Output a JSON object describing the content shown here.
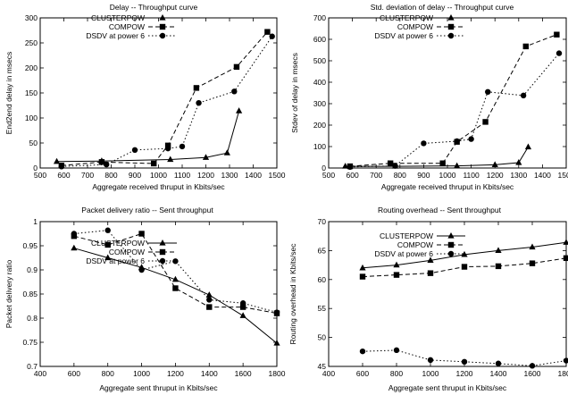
{
  "chart_data": [
    {
      "type": "line",
      "title": "Delay -- Throughput curve",
      "xlabel": "Aggregate received thruput in Kbits/sec",
      "ylabel": "End2end delay in msecs",
      "xlim": [
        500,
        1500
      ],
      "ylim": [
        0,
        300
      ],
      "xticks": [
        500,
        600,
        700,
        800,
        900,
        1000,
        1100,
        1200,
        1300,
        1400,
        1500
      ],
      "yticks": [
        0,
        50,
        100,
        150,
        200,
        250,
        300
      ],
      "legend_position": "top-left",
      "series": [
        {
          "name": "CLUSTERPOW",
          "marker": "triangle",
          "dash": "solid",
          "points": [
            [
              570,
              13
            ],
            [
              760,
              14
            ],
            [
              1050,
              17
            ],
            [
              1200,
              21
            ],
            [
              1290,
              30
            ],
            [
              1340,
              114
            ]
          ]
        },
        {
          "name": "COMPOW",
          "marker": "square",
          "dash": "dashed",
          "points": [
            [
              590,
              5
            ],
            [
              760,
              12
            ],
            [
              980,
              9
            ],
            [
              1040,
              45
            ],
            [
              1160,
              160
            ],
            [
              1330,
              202
            ],
            [
              1460,
              272
            ]
          ]
        },
        {
          "name": "DSDV at power 6",
          "marker": "circle",
          "dash": "dotted",
          "points": [
            [
              590,
              3
            ],
            [
              780,
              7
            ],
            [
              900,
              36
            ],
            [
              1040,
              39
            ],
            [
              1100,
              43
            ],
            [
              1170,
              130
            ],
            [
              1320,
              153
            ],
            [
              1480,
              263
            ]
          ]
        }
      ]
    },
    {
      "type": "line",
      "title": "Std. deviation of delay -- Throughput curve",
      "xlabel": "Aggregate received thruput in Kbits/sec",
      "ylabel": "Stdev of delay in msecs",
      "xlim": [
        500,
        1500
      ],
      "ylim": [
        0,
        700
      ],
      "xticks": [
        500,
        600,
        700,
        800,
        900,
        1000,
        1100,
        1200,
        1300,
        1400,
        1500
      ],
      "yticks": [
        0,
        100,
        200,
        300,
        400,
        500,
        600,
        700
      ],
      "legend_position": "top-left",
      "series": [
        {
          "name": "CLUSTERPOW",
          "marker": "triangle",
          "dash": "solid",
          "points": [
            [
              570,
              8
            ],
            [
              780,
              8
            ],
            [
              1040,
              10
            ],
            [
              1200,
              15
            ],
            [
              1300,
              25
            ],
            [
              1340,
              98
            ]
          ]
        },
        {
          "name": "COMPOW",
          "marker": "square",
          "dash": "dashed",
          "points": [
            [
              590,
              8
            ],
            [
              760,
              22
            ],
            [
              980,
              22
            ],
            [
              1040,
              122
            ],
            [
              1160,
              215
            ],
            [
              1330,
              567
            ],
            [
              1460,
              622
            ]
          ]
        },
        {
          "name": "DSDV at power 6",
          "marker": "circle",
          "dash": "dotted",
          "points": [
            [
              590,
              5
            ],
            [
              780,
              10
            ],
            [
              900,
              115
            ],
            [
              1040,
              125
            ],
            [
              1100,
              135
            ],
            [
              1170,
              355
            ],
            [
              1320,
              338
            ],
            [
              1470,
              535
            ]
          ]
        }
      ]
    },
    {
      "type": "line",
      "title": "Packet delivery ratio -- Sent throughput",
      "xlabel": "Aggregate sent thruput in Kbits/sec",
      "ylabel": "Packet delivery ratio",
      "xlim": [
        400,
        1800
      ],
      "ylim": [
        0.7,
        1.0
      ],
      "xticks": [
        400,
        600,
        800,
        1000,
        1200,
        1400,
        1600,
        1800
      ],
      "yticks": [
        0.7,
        0.75,
        0.8,
        0.85,
        0.9,
        0.95,
        1
      ],
      "legend_position": "top-right",
      "series": [
        {
          "name": "CLUSTERPOW",
          "marker": "triangle",
          "dash": "solid",
          "points": [
            [
              600,
              0.945
            ],
            [
              800,
              0.925
            ],
            [
              1000,
              0.905
            ],
            [
              1200,
              0.88
            ],
            [
              1400,
              0.848
            ],
            [
              1600,
              0.805
            ],
            [
              1800,
              0.748
            ]
          ]
        },
        {
          "name": "COMPOW",
          "marker": "square",
          "dash": "dashed",
          "points": [
            [
              600,
              0.97
            ],
            [
              800,
              0.952
            ],
            [
              1000,
              0.975
            ],
            [
              1200,
              0.862
            ],
            [
              1400,
              0.823
            ],
            [
              1600,
              0.823
            ],
            [
              1800,
              0.81
            ]
          ]
        },
        {
          "name": "DSDV at power 6",
          "marker": "circle",
          "dash": "dotted",
          "points": [
            [
              600,
              0.975
            ],
            [
              800,
              0.982
            ],
            [
              1000,
              0.9
            ],
            [
              1200,
              0.918
            ],
            [
              1400,
              0.838
            ],
            [
              1600,
              0.831
            ],
            [
              1800,
              0.812
            ]
          ]
        }
      ]
    },
    {
      "type": "line",
      "title": "Routing overhead -- Sent throughput",
      "xlabel": "Aggregate sent thruput in Kbits/sec",
      "ylabel": "Routing overhead in Kbits/sec",
      "xlim": [
        400,
        1800
      ],
      "ylim": [
        45,
        70
      ],
      "xticks": [
        400,
        600,
        800,
        1000,
        1200,
        1400,
        1600,
        1800
      ],
      "yticks": [
        45,
        50,
        55,
        60,
        65,
        70
      ],
      "legend_position": "top-right",
      "series": [
        {
          "name": "CLUSTERPOW",
          "marker": "triangle",
          "dash": "solid",
          "points": [
            [
              600,
              62
            ],
            [
              800,
              62.5
            ],
            [
              1000,
              63.3
            ],
            [
              1200,
              64.3
            ],
            [
              1400,
              65
            ],
            [
              1600,
              65.6
            ],
            [
              1800,
              66.4
            ]
          ]
        },
        {
          "name": "COMPOW",
          "marker": "square",
          "dash": "dashed",
          "points": [
            [
              600,
              60.5
            ],
            [
              800,
              60.8
            ],
            [
              1000,
              61.1
            ],
            [
              1200,
              62.2
            ],
            [
              1400,
              62.3
            ],
            [
              1600,
              62.8
            ],
            [
              1800,
              63.7
            ]
          ]
        },
        {
          "name": "DSDV at power 6",
          "marker": "circle",
          "dash": "dotted",
          "points": [
            [
              600,
              47.6
            ],
            [
              800,
              47.8
            ],
            [
              1000,
              46.1
            ],
            [
              1200,
              45.8
            ],
            [
              1400,
              45.5
            ],
            [
              1600,
              45.1
            ],
            [
              1800,
              46
            ]
          ]
        }
      ]
    }
  ]
}
